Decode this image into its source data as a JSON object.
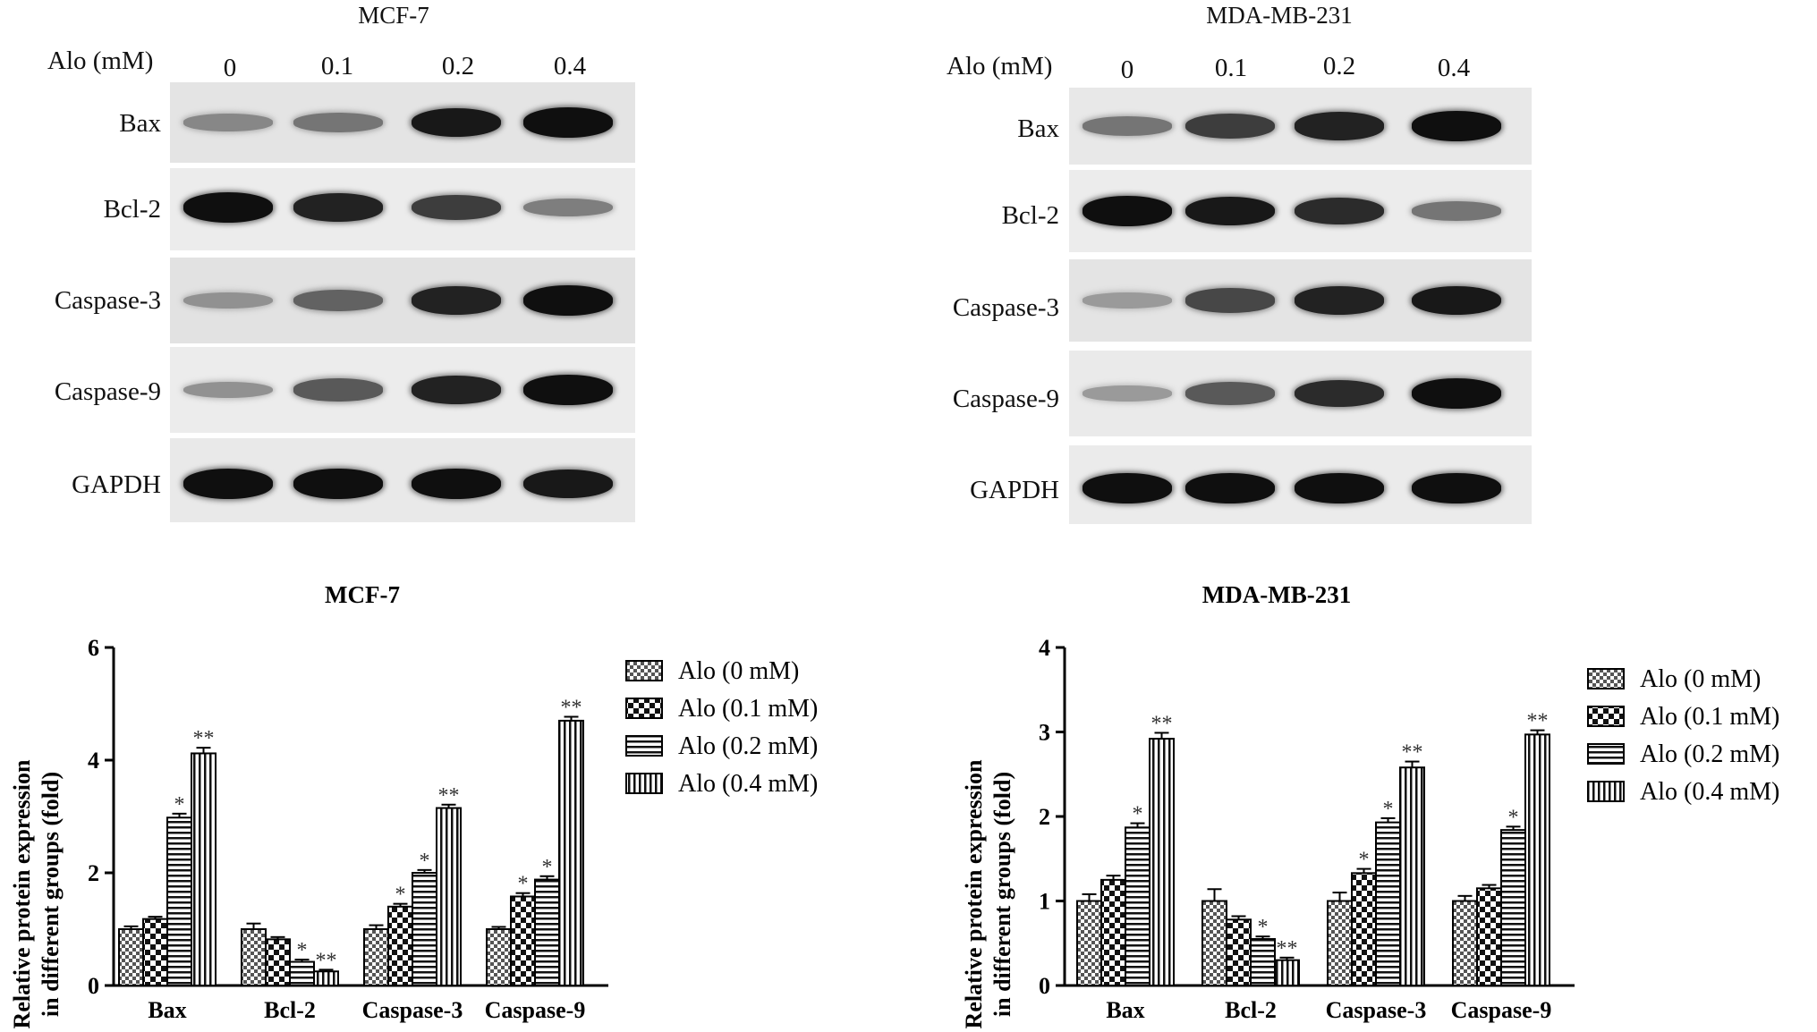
{
  "blots": [
    {
      "title": "MCF-7",
      "alo_label": "Alo (mM)",
      "concentrations": [
        "0",
        "0.1",
        "0.2",
        "0.4"
      ],
      "proteins": [
        {
          "label": "Bax",
          "intensities": [
            0.35,
            0.45,
            0.95,
            1.0
          ]
        },
        {
          "label": "Bcl-2",
          "intensities": [
            1.0,
            0.9,
            0.75,
            0.4
          ]
        },
        {
          "label": "Caspase-3",
          "intensities": [
            0.3,
            0.55,
            0.9,
            1.0
          ]
        },
        {
          "label": "Caspase-9",
          "intensities": [
            0.3,
            0.6,
            0.9,
            1.0
          ]
        },
        {
          "label": "GAPDH",
          "intensities": [
            1.0,
            1.0,
            1.0,
            0.95
          ]
        }
      ]
    },
    {
      "title": "MDA-MB-231",
      "alo_label": "Alo (mM)",
      "concentrations": [
        "0",
        "0.1",
        "0.2",
        "0.4"
      ],
      "proteins": [
        {
          "label": "Bax",
          "intensities": [
            0.45,
            0.75,
            0.9,
            1.0
          ]
        },
        {
          "label": "Bcl-2",
          "intensities": [
            1.0,
            0.95,
            0.85,
            0.45
          ]
        },
        {
          "label": "Caspase-3",
          "intensities": [
            0.25,
            0.7,
            0.9,
            0.95
          ]
        },
        {
          "label": "Caspase-9",
          "intensities": [
            0.25,
            0.6,
            0.85,
            1.0
          ]
        },
        {
          "label": "GAPDH",
          "intensities": [
            1.0,
            1.0,
            1.0,
            1.0
          ]
        }
      ]
    }
  ],
  "chart_data": [
    {
      "type": "bar",
      "title": "MCF-7",
      "ylabel_line1": "Relative protein expression",
      "ylabel_line2": "in different groups (fold)",
      "xlabel": "",
      "categories": [
        "Bax",
        "Bcl-2",
        "Caspase-3",
        "Caspase-9"
      ],
      "ylim": [
        0,
        6
      ],
      "yticks": [
        0,
        2,
        4,
        6
      ],
      "legend_position": "right",
      "series": [
        {
          "name": "Alo (0 mM)",
          "pattern": "checker-small",
          "values": [
            1.0,
            1.0,
            1.0,
            1.0
          ],
          "errors": [
            0.05,
            0.1,
            0.07,
            0.04
          ],
          "sig": [
            "",
            "",
            "",
            ""
          ]
        },
        {
          "name": "Alo (0.1 mM)",
          "pattern": "checker-large",
          "values": [
            1.18,
            0.82,
            1.4,
            1.58
          ],
          "errors": [
            0.04,
            0.04,
            0.05,
            0.06
          ],
          "sig": [
            "",
            "",
            "*",
            "*"
          ]
        },
        {
          "name": "Alo (0.2 mM)",
          "pattern": "horizontal",
          "values": [
            2.98,
            0.42,
            2.0,
            1.88
          ],
          "errors": [
            0.07,
            0.04,
            0.05,
            0.06
          ],
          "sig": [
            "*",
            "*",
            "*",
            "*"
          ]
        },
        {
          "name": "Alo (0.4 mM)",
          "pattern": "vertical",
          "values": [
            4.12,
            0.25,
            3.15,
            4.7
          ],
          "errors": [
            0.1,
            0.03,
            0.06,
            0.07
          ],
          "sig": [
            "**",
            "**",
            "**",
            "**"
          ]
        }
      ]
    },
    {
      "type": "bar",
      "title": "MDA-MB-231",
      "ylabel_line1": "Relative protein expression",
      "ylabel_line2": "in different groups (fold)",
      "xlabel": "",
      "categories": [
        "Bax",
        "Bcl-2",
        "Caspase-3",
        "Caspase-9"
      ],
      "ylim": [
        0,
        4
      ],
      "yticks": [
        0,
        1,
        2,
        3,
        4
      ],
      "legend_position": "right",
      "series": [
        {
          "name": "Alo (0 mM)",
          "pattern": "checker-small",
          "values": [
            1.0,
            1.0,
            1.0,
            1.0
          ],
          "errors": [
            0.08,
            0.14,
            0.1,
            0.06
          ],
          "sig": [
            "",
            "",
            "",
            ""
          ]
        },
        {
          "name": "Alo (0.1 mM)",
          "pattern": "checker-large",
          "values": [
            1.25,
            0.78,
            1.33,
            1.15
          ],
          "errors": [
            0.05,
            0.04,
            0.05,
            0.04
          ],
          "sig": [
            "",
            "",
            "*",
            ""
          ]
        },
        {
          "name": "Alo (0.2 mM)",
          "pattern": "horizontal",
          "values": [
            1.87,
            0.55,
            1.93,
            1.84
          ],
          "errors": [
            0.05,
            0.03,
            0.05,
            0.04
          ],
          "sig": [
            "*",
            "*",
            "*",
            "*"
          ]
        },
        {
          "name": "Alo (0.4 mM)",
          "pattern": "vertical",
          "values": [
            2.92,
            0.3,
            2.58,
            2.97
          ],
          "errors": [
            0.07,
            0.03,
            0.07,
            0.05
          ],
          "sig": [
            "**",
            "**",
            "**",
            "**"
          ]
        }
      ]
    }
  ]
}
